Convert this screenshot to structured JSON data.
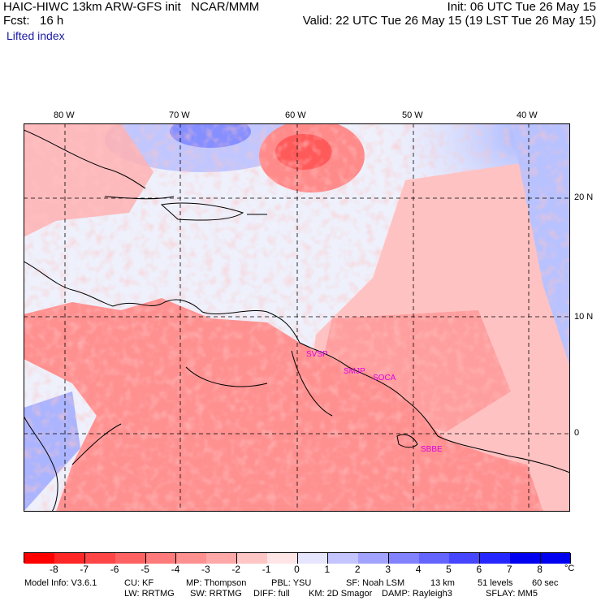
{
  "header": {
    "line1_left": "HAIC-HIWC 13km ARW-GFS init   NCAR/MMM",
    "line1_right": "Init: 06 UTC Tue 26 May 15",
    "line2_left": "Fcst:   16 h",
    "line2_right": "Valid: 22 UTC Tue 26 May 15 (19 LST Tue 26 May 15)",
    "field_label": "Lifted index"
  },
  "axes": {
    "lon_labels": [
      "80 W",
      "70 W",
      "60 W",
      "50 W",
      "40 W"
    ],
    "lat_labels": [
      "20 N",
      "10 N",
      "0"
    ]
  },
  "stations": [
    "SVSP",
    "SMJP",
    "SOCA",
    "SBBE"
  ],
  "colorbar": {
    "tick_labels": [
      "-8",
      "-7",
      "-6",
      "-5",
      "-4",
      "-3",
      "-2",
      "-1",
      "0",
      "1",
      "2",
      "3",
      "4",
      "5",
      "6",
      "7",
      "8"
    ],
    "unit": "°C",
    "colors": [
      "#ff0000",
      "#ff2626",
      "#ff4646",
      "#ff6262",
      "#ff7a7a",
      "#ff9090",
      "#ffa8a8",
      "#ffc6c6",
      "#ffe6e6",
      "#e6e6ff",
      "#c4c4ff",
      "#a2a2ff",
      "#8282ff",
      "#6464ff",
      "#4646ff",
      "#2626ff",
      "#0000f0"
    ]
  },
  "footer": {
    "line1": [
      "Model Info: V3.6.1",
      "CU: KF",
      "MP: Thompson",
      "PBL: YSU",
      "SF: Noah LSM",
      "13 km",
      "51 levels",
      "60 sec"
    ],
    "line2": [
      "LW: RRTMG",
      "SW: RRTMG",
      "DIFF: full",
      "KM: 2D Smagor",
      "DAMP: Rayleigh3",
      "SFLAY: MM5"
    ]
  }
}
